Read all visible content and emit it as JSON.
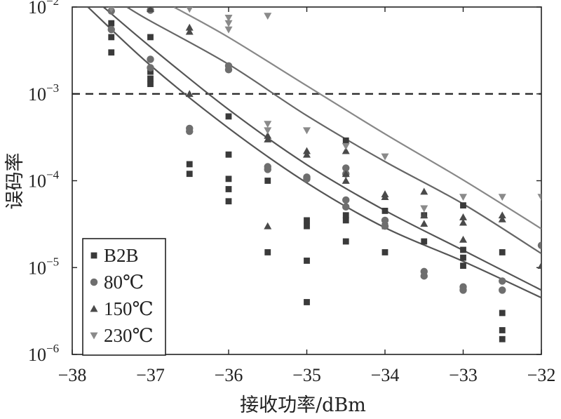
{
  "chart_data": {
    "type": "scatter",
    "title": "",
    "xlabel": "接收功率/dBm",
    "ylabel": "误码率",
    "xlim": [
      -38,
      -32
    ],
    "ylim": [
      1e-06,
      0.01
    ],
    "yscale": "log",
    "x_ticks": [
      "−38",
      "−37",
      "−36",
      "−35",
      "−34",
      "−33",
      "−32"
    ],
    "y_ticks": [
      {
        "base": "10",
        "exp": "−2",
        "value": 0.01
      },
      {
        "base": "10",
        "exp": "−3",
        "value": 0.001
      },
      {
        "base": "10",
        "exp": "−4",
        "value": 0.0001
      },
      {
        "base": "10",
        "exp": "−5",
        "value": 1e-05
      },
      {
        "base": "10",
        "exp": "−6",
        "value": 1e-06
      }
    ],
    "threshold": {
      "y": 0.001,
      "style": "dashed"
    },
    "legend": {
      "position": "bottom-left"
    },
    "grid": false,
    "series": [
      {
        "name": "B2B",
        "marker": "square",
        "color": "#3a3a3a",
        "points": [
          [
            -37.5,
            0.0065
          ],
          [
            -37.5,
            0.0045
          ],
          [
            -37.5,
            0.003
          ],
          [
            -37.0,
            0.0045
          ],
          [
            -37.0,
            0.0018
          ],
          [
            -37.0,
            0.0015
          ],
          [
            -37.0,
            0.0013
          ],
          [
            -36.5,
            0.000155
          ],
          [
            -36.5,
            0.00012
          ],
          [
            -36.0,
            0.00055
          ],
          [
            -36.0,
            0.0002
          ],
          [
            -36.0,
            0.000105
          ],
          [
            -36.0,
            8e-05
          ],
          [
            -36.0,
            5.8e-05
          ],
          [
            -35.5,
            0.0001
          ],
          [
            -35.5,
            1.5e-05
          ],
          [
            -35.0,
            3.5e-05
          ],
          [
            -35.0,
            3e-05
          ],
          [
            -35.0,
            1.2e-05
          ],
          [
            -35.0,
            4e-06
          ],
          [
            -34.5,
            0.00029
          ],
          [
            -34.5,
            4e-05
          ],
          [
            -34.5,
            3.5e-05
          ],
          [
            -34.5,
            2e-05
          ],
          [
            -34.0,
            4.5e-05
          ],
          [
            -34.0,
            3e-05
          ],
          [
            -34.0,
            1.5e-05
          ],
          [
            -33.5,
            4e-05
          ],
          [
            -33.5,
            2e-05
          ],
          [
            -33.0,
            5.2e-05
          ],
          [
            -33.0,
            1.6e-05
          ],
          [
            -33.0,
            1.3e-05
          ],
          [
            -33.0,
            1.05e-05
          ],
          [
            -32.5,
            1.5e-05
          ],
          [
            -32.5,
            3e-06
          ],
          [
            -32.5,
            1.9e-06
          ],
          [
            -32.5,
            1.5e-06
          ]
        ]
      },
      {
        "name": "80℃",
        "marker": "circle",
        "color": "#6e6e6e",
        "points": [
          [
            -37.5,
            0.009
          ],
          [
            -37.5,
            0.0055
          ],
          [
            -37.0,
            0.0092
          ],
          [
            -37.0,
            0.0025
          ],
          [
            -37.0,
            0.002
          ],
          [
            -36.5,
            0.0004
          ],
          [
            -36.5,
            0.00037
          ],
          [
            -36.0,
            0.0021
          ],
          [
            -36.0,
            0.0019
          ],
          [
            -35.5,
            0.000145
          ],
          [
            -35.5,
            0.000135
          ],
          [
            -35.0,
            0.00011
          ],
          [
            -35.0,
            0.000105
          ],
          [
            -34.5,
            0.00014
          ],
          [
            -34.5,
            0.00012
          ],
          [
            -34.5,
            6e-05
          ],
          [
            -34.5,
            5e-05
          ],
          [
            -34.0,
            3.5e-05
          ],
          [
            -34.0,
            3e-05
          ],
          [
            -33.5,
            9e-06
          ],
          [
            -33.5,
            8e-06
          ],
          [
            -33.0,
            6e-06
          ],
          [
            -33.0,
            5.5e-06
          ],
          [
            -32.5,
            7e-06
          ],
          [
            -32.5,
            5.5e-06
          ],
          [
            -32.0,
            1.8e-05
          ]
        ]
      },
      {
        "name": "150℃",
        "marker": "triangle-up",
        "color": "#4a4a4a",
        "points": [
          [
            -37.0,
            0.0095
          ],
          [
            -36.5,
            0.0058
          ],
          [
            -36.5,
            0.0052
          ],
          [
            -36.5,
            0.001
          ],
          [
            -35.5,
            0.00033
          ],
          [
            -35.5,
            0.0003
          ],
          [
            -35.5,
            3e-05
          ],
          [
            -35.0,
            0.00022
          ],
          [
            -35.0,
            0.0002
          ],
          [
            -34.5,
            0.00022
          ],
          [
            -34.5,
            0.00012
          ],
          [
            -34.5,
            0.0001
          ],
          [
            -34.0,
            7e-05
          ],
          [
            -34.0,
            6.5e-05
          ],
          [
            -33.5,
            7.5e-05
          ],
          [
            -33.5,
            4e-05
          ],
          [
            -33.5,
            3.2e-05
          ],
          [
            -33.0,
            3.8e-05
          ],
          [
            -33.0,
            3.3e-05
          ],
          [
            -33.0,
            2.1e-05
          ],
          [
            -32.5,
            4e-05
          ],
          [
            -32.5,
            3.6e-05
          ],
          [
            -32.0,
            1.05e-05
          ]
        ]
      },
      {
        "name": "230℃",
        "marker": "triangle-down",
        "color": "#8a8a8a",
        "points": [
          [
            -37.5,
            0.0095
          ],
          [
            -36.5,
            0.0095
          ],
          [
            -36.0,
            0.0075
          ],
          [
            -36.0,
            0.0065
          ],
          [
            -36.0,
            0.0055
          ],
          [
            -35.5,
            0.0079
          ],
          [
            -35.5,
            0.00045
          ],
          [
            -35.5,
            0.00038
          ],
          [
            -35.0,
            0.00038
          ],
          [
            -34.5,
            0.00025
          ],
          [
            -34.0,
            0.00019
          ],
          [
            -33.5,
            4.8e-05
          ],
          [
            -33.0,
            6.5e-05
          ],
          [
            -32.5,
            6.5e-05
          ],
          [
            -32.0,
            6.5e-05
          ]
        ]
      }
    ],
    "fit_curves": [
      {
        "series": "B2B",
        "color": "#555555",
        "points": [
          [
            -37.8,
            0.01
          ],
          [
            -37.0,
            0.00213
          ],
          [
            -36.0,
            0.000403
          ],
          [
            -35.0,
            9.45e-05
          ],
          [
            -34.0,
            2.88e-05
          ],
          [
            -33.0,
            1.18e-05
          ],
          [
            -32.0,
            4.5e-06
          ]
        ]
      },
      {
        "series": "80℃",
        "color": "#555555",
        "points": [
          [
            -37.6,
            0.01
          ],
          [
            -37.0,
            0.00348
          ],
          [
            -36.0,
            0.000661
          ],
          [
            -35.0,
            0.000153
          ],
          [
            -34.0,
            4.54e-05
          ],
          [
            -33.0,
            1.58e-05
          ],
          [
            -32.0,
            5.5e-06
          ]
        ]
      },
      {
        "series": "150℃",
        "color": "#666666",
        "points": [
          [
            -37.3,
            0.01
          ],
          [
            -37.0,
            0.0069
          ],
          [
            -36.0,
            0.00219
          ],
          [
            -35.0,
            0.000562
          ],
          [
            -34.0,
            0.000166
          ],
          [
            -33.0,
            5.4e-05
          ],
          [
            -32.0,
            1.45e-05
          ]
        ]
      },
      {
        "series": "230℃",
        "color": "#888888",
        "points": [
          [
            -36.7,
            0.01
          ],
          [
            -36.0,
            0.00448
          ],
          [
            -35.0,
            0.00124
          ],
          [
            -34.0,
            0.000346
          ],
          [
            -33.0,
            0.000102
          ],
          [
            -32.0,
            2.8e-05
          ]
        ]
      }
    ]
  }
}
